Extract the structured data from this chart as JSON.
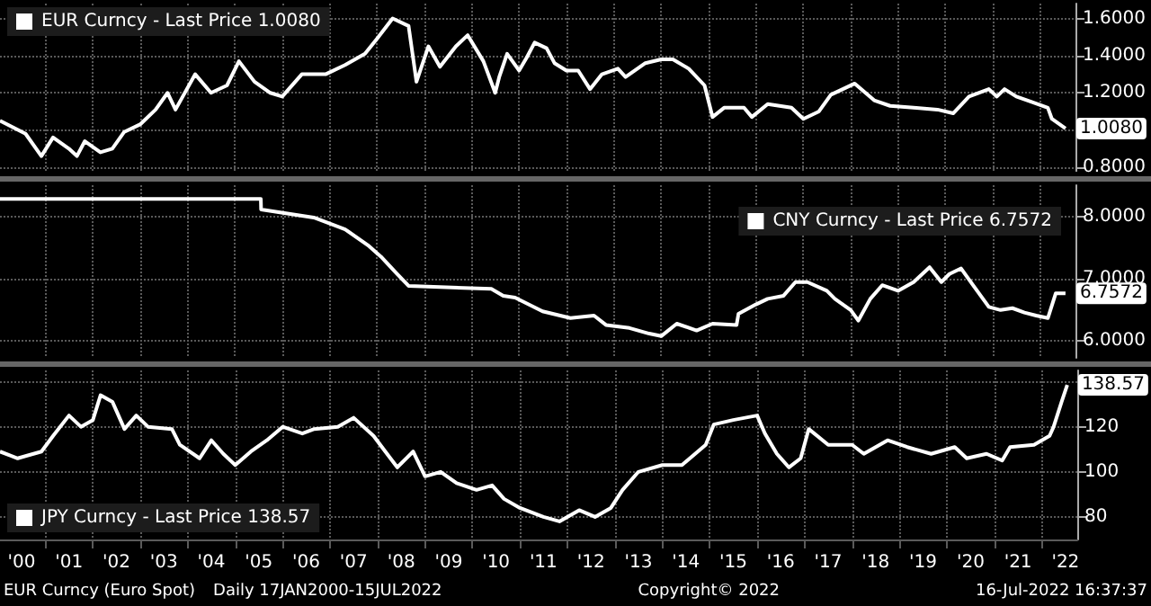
{
  "chart_data": [
    {
      "type": "line",
      "xlim": [
        "2000-01-17",
        "2022-09-30"
      ],
      "ylim": [
        0.78,
        1.68
      ],
      "tick_labels": "y",
      "grid": true,
      "legend": "top left",
      "xticks": [
        {
          "value": "2001-01-01",
          "label": null
        },
        {
          "value": "2002-01-01",
          "label": null
        },
        {
          "value": "2003-01-01",
          "label": null
        },
        {
          "value": "2004-01-01",
          "label": null
        },
        {
          "value": "2005-01-01",
          "label": null
        },
        {
          "value": "2006-01-01",
          "label": null
        },
        {
          "value": "2007-01-01",
          "label": null
        },
        {
          "value": "2008-01-01",
          "label": null
        },
        {
          "value": "2009-01-01",
          "label": null
        },
        {
          "value": "2010-01-01",
          "label": null
        },
        {
          "value": "2011-01-01",
          "label": null
        },
        {
          "value": "2012-01-01",
          "label": null
        },
        {
          "value": "2013-01-01",
          "label": null
        },
        {
          "value": "2014-01-01",
          "label": null
        },
        {
          "value": "2015-01-01",
          "label": null
        },
        {
          "value": "2016-01-01",
          "label": null
        },
        {
          "value": "2017-01-01",
          "label": null
        },
        {
          "value": "2018-01-01",
          "label": null
        },
        {
          "value": "2019-01-01",
          "label": null
        },
        {
          "value": "2020-01-01",
          "label": null
        },
        {
          "value": "2021-01-01",
          "label": null
        },
        {
          "value": "2022-01-01",
          "label": null
        }
      ],
      "yticks": [
        {
          "value": 0.8,
          "label": "0.8000"
        },
        {
          "value": 1.0,
          "label": null
        },
        {
          "value": 1.2,
          "label": "1.2000"
        },
        {
          "value": 1.4,
          "label": "1.4000"
        },
        {
          "value": 1.6,
          "label": "1.6000"
        }
      ],
      "annotations": [
        {
          "text": "1.0080",
          "x": "2022-07-15",
          "y": 1.008
        }
      ],
      "series": [
        {
          "name": "EUR Curncy - Last Price 1.0080",
          "color": "#ffffff",
          "x": [
            "2000-01-17",
            "2000-08",
            "2000-12",
            "2001-03",
            "2001-07",
            "2001-09",
            "2001-11",
            "2002-03",
            "2002-06",
            "2002-09",
            "2003-01",
            "2003-05",
            "2003-08",
            "2003-10",
            "2004-03",
            "2004-07",
            "2004-11",
            "2005-02",
            "2005-06",
            "2005-10",
            "2006-01",
            "2006-06",
            "2006-12",
            "2007-05",
            "2007-10",
            "2008-01",
            "2008-05",
            "2008-09",
            "2008-11",
            "2009-02",
            "2009-05",
            "2009-09",
            "2009-12",
            "2010-04",
            "2010-07",
            "2010-08",
            "2010-10",
            "2011-01",
            "2011-03",
            "2011-05",
            "2011-08",
            "2011-10",
            "2012-01",
            "2012-04",
            "2012-07",
            "2012-10",
            "2013-02",
            "2013-04",
            "2013-09",
            "2014-01",
            "2014-04",
            "2014-08",
            "2014-12",
            "2015-02",
            "2015-05",
            "2015-10",
            "2015-12",
            "2016-04",
            "2016-10",
            "2017-01",
            "2017-05",
            "2017-08",
            "2018-02",
            "2018-07",
            "2018-11",
            "2019-05",
            "2019-11",
            "2020-03",
            "2020-07",
            "2020-12",
            "2021-02",
            "2021-04",
            "2021-07",
            "2021-11",
            "2022-03",
            "2022-04",
            "2022-07-15"
          ],
          "values": [
            1.05,
            0.98,
            0.86,
            0.96,
            0.9,
            0.86,
            0.94,
            0.88,
            0.9,
            0.99,
            1.03,
            1.11,
            1.2,
            1.11,
            1.3,
            1.2,
            1.24,
            1.37,
            1.26,
            1.2,
            1.18,
            1.3,
            1.3,
            1.35,
            1.41,
            1.49,
            1.6,
            1.56,
            1.26,
            1.45,
            1.34,
            1.45,
            1.51,
            1.37,
            1.2,
            1.285,
            1.41,
            1.32,
            1.39,
            1.47,
            1.44,
            1.36,
            1.32,
            1.32,
            1.22,
            1.3,
            1.33,
            1.285,
            1.36,
            1.38,
            1.38,
            1.33,
            1.24,
            1.07,
            1.12,
            1.12,
            1.07,
            1.14,
            1.12,
            1.06,
            1.1,
            1.19,
            1.25,
            1.16,
            1.13,
            1.12,
            1.11,
            1.09,
            1.18,
            1.22,
            1.18,
            1.22,
            1.18,
            1.15,
            1.12,
            1.06,
            1.008
          ]
        }
      ]
    },
    {
      "type": "line",
      "xlim": [
        "2000-01-17",
        "2022-09-30"
      ],
      "ylim": [
        5.72,
        8.5
      ],
      "tick_labels": "y",
      "grid": true,
      "legend": "top right",
      "xticks": [
        {
          "value": "2001-01-01",
          "label": null
        },
        {
          "value": "2002-01-01",
          "label": null
        },
        {
          "value": "2003-01-01",
          "label": null
        },
        {
          "value": "2004-01-01",
          "label": null
        },
        {
          "value": "2005-01-01",
          "label": null
        },
        {
          "value": "2006-01-01",
          "label": null
        },
        {
          "value": "2007-01-01",
          "label": null
        },
        {
          "value": "2008-01-01",
          "label": null
        },
        {
          "value": "2009-01-01",
          "label": null
        },
        {
          "value": "2010-01-01",
          "label": null
        },
        {
          "value": "2011-01-01",
          "label": null
        },
        {
          "value": "2012-01-01",
          "label": null
        },
        {
          "value": "2013-01-01",
          "label": null
        },
        {
          "value": "2014-01-01",
          "label": null
        },
        {
          "value": "2015-01-01",
          "label": null
        },
        {
          "value": "2016-01-01",
          "label": null
        },
        {
          "value": "2017-01-01",
          "label": null
        },
        {
          "value": "2018-01-01",
          "label": null
        },
        {
          "value": "2019-01-01",
          "label": null
        },
        {
          "value": "2020-01-01",
          "label": null
        },
        {
          "value": "2021-01-01",
          "label": null
        },
        {
          "value": "2022-01-01",
          "label": null
        }
      ],
      "yticks": [
        {
          "value": 6,
          "label": "6.0000"
        },
        {
          "value": 7,
          "label": "7.0000"
        },
        {
          "value": 8,
          "label": "8.0000"
        }
      ],
      "annotations": [
        {
          "text": "6.7572",
          "x": "2022-07-15",
          "y": 6.7572
        }
      ],
      "series": [
        {
          "name": "CNY Curncy - Last Price 6.7572",
          "color": "#ffffff",
          "x": [
            "2000-01-17",
            "2005-07-20",
            "2005-07-22",
            "2006-09",
            "2007-05",
            "2007-11",
            "2008-02",
            "2008-06",
            "2008-09",
            "2010-06",
            "2010-09",
            "2010-12",
            "2011-07",
            "2012-02",
            "2012-08",
            "2012-11",
            "2013-05",
            "2013-10",
            "2014-01",
            "2014-05",
            "2014-10",
            "2015-02",
            "2015-08-05",
            "2015-08-20",
            "2016-01",
            "2016-04",
            "2016-08",
            "2016-11",
            "2017-02",
            "2017-07",
            "2017-09",
            "2018-01",
            "2018-03",
            "2018-06",
            "2018-09",
            "2019-01",
            "2019-05",
            "2019-09",
            "2019-12",
            "2020-02",
            "2020-05",
            "2020-08",
            "2020-12",
            "2021-03",
            "2021-06",
            "2021-09",
            "2021-12",
            "2022-03",
            "2022-05",
            "2022-07-15"
          ],
          "values": [
            8.28,
            8.28,
            8.11,
            7.98,
            7.79,
            7.52,
            7.35,
            7.08,
            6.88,
            6.83,
            6.72,
            6.69,
            6.47,
            6.36,
            6.4,
            6.25,
            6.2,
            6.11,
            6.07,
            6.27,
            6.16,
            6.27,
            6.25,
            6.43,
            6.58,
            6.67,
            6.72,
            6.94,
            6.94,
            6.8,
            6.67,
            6.49,
            6.32,
            6.67,
            6.89,
            6.8,
            6.94,
            7.18,
            6.94,
            7.07,
            7.16,
            6.89,
            6.54,
            6.49,
            6.52,
            6.45,
            6.4,
            6.36,
            6.76,
            6.7572
          ]
        }
      ]
    },
    {
      "type": "line",
      "xlim": [
        "2000-01-17",
        "2022-09-30"
      ],
      "ylim": [
        70,
        145
      ],
      "grid": true,
      "legend": "bottom left",
      "xticks": [
        {
          "value": "2000-07-01",
          "label": "'00"
        },
        {
          "value": "2001-01-01",
          "label": null
        },
        {
          "value": "2001-07-01",
          "label": "'01"
        },
        {
          "value": "2002-01-01",
          "label": null
        },
        {
          "value": "2002-07-01",
          "label": "'02"
        },
        {
          "value": "2003-01-01",
          "label": null
        },
        {
          "value": "2003-07-01",
          "label": "'03"
        },
        {
          "value": "2004-01-01",
          "label": null
        },
        {
          "value": "2004-07-01",
          "label": "'04"
        },
        {
          "value": "2005-01-01",
          "label": null
        },
        {
          "value": "2005-07-01",
          "label": "'05"
        },
        {
          "value": "2006-01-01",
          "label": null
        },
        {
          "value": "2006-07-01",
          "label": "'06"
        },
        {
          "value": "2007-01-01",
          "label": null
        },
        {
          "value": "2007-07-01",
          "label": "'07"
        },
        {
          "value": "2008-01-01",
          "label": null
        },
        {
          "value": "2008-07-01",
          "label": "'08"
        },
        {
          "value": "2009-01-01",
          "label": null
        },
        {
          "value": "2009-07-01",
          "label": "'09"
        },
        {
          "value": "2010-01-01",
          "label": null
        },
        {
          "value": "2010-07-01",
          "label": "'10"
        },
        {
          "value": "2011-01-01",
          "label": null
        },
        {
          "value": "2011-07-01",
          "label": "'11"
        },
        {
          "value": "2012-01-01",
          "label": null
        },
        {
          "value": "2012-07-01",
          "label": "'12"
        },
        {
          "value": "2013-01-01",
          "label": null
        },
        {
          "value": "2013-07-01",
          "label": "'13"
        },
        {
          "value": "2014-01-01",
          "label": null
        },
        {
          "value": "2014-07-01",
          "label": "'14"
        },
        {
          "value": "2015-01-01",
          "label": null
        },
        {
          "value": "2015-07-01",
          "label": "'15"
        },
        {
          "value": "2016-01-01",
          "label": null
        },
        {
          "value": "2016-07-01",
          "label": "'16"
        },
        {
          "value": "2017-01-01",
          "label": null
        },
        {
          "value": "2017-07-01",
          "label": "'17"
        },
        {
          "value": "2018-01-01",
          "label": null
        },
        {
          "value": "2018-07-01",
          "label": "'18"
        },
        {
          "value": "2019-01-01",
          "label": null
        },
        {
          "value": "2019-07-01",
          "label": "'19"
        },
        {
          "value": "2020-01-01",
          "label": null
        },
        {
          "value": "2020-07-01",
          "label": "'20"
        },
        {
          "value": "2021-01-01",
          "label": null
        },
        {
          "value": "2021-07-01",
          "label": "'21"
        },
        {
          "value": "2022-01-01",
          "label": null
        },
        {
          "value": "2022-07-01",
          "label": "'22"
        }
      ],
      "yticks": [
        80,
        100,
        120,
        {
          "value": 140,
          "label": null
        }
      ],
      "annotations": [
        {
          "text": "138.57",
          "x": "2022-07-15",
          "y": 138.57
        },
        "EUR Curncy (Euro Spot)",
        "Daily 17JAN2000-15JUL2022",
        "Copyright© 2022",
        "16-Jul-2022 16:37:37"
      ],
      "series": [
        {
          "name": "JPY Curncy - Last Price 138.57",
          "color": "#ffffff",
          "x": [
            "2000-01-17",
            "2000-06",
            "2000-12",
            "2001-03",
            "2001-07",
            "2001-10",
            "2002-01",
            "2002-03",
            "2002-06",
            "2002-09",
            "2002-12",
            "2003-03",
            "2003-09",
            "2003-11",
            "2004-04",
            "2004-07",
            "2004-10",
            "2005-01",
            "2005-05",
            "2005-09",
            "2006-01",
            "2006-06",
            "2006-09",
            "2007-03",
            "2007-07",
            "2007-12",
            "2008-03",
            "2008-06",
            "2008-10",
            "2009-01",
            "2009-05",
            "2009-09",
            "2010-02",
            "2010-06",
            "2010-09",
            "2011-01",
            "2011-07",
            "2011-11",
            "2012-04",
            "2012-08",
            "2012-12",
            "2013-03",
            "2013-07",
            "2014-01",
            "2014-06",
            "2014-12",
            "2015-02",
            "2015-07",
            "2016-01",
            "2016-03",
            "2016-06",
            "2016-09",
            "2016-12",
            "2017-02",
            "2017-07",
            "2018-01",
            "2018-04",
            "2018-10",
            "2019-03",
            "2019-09",
            "2020-03",
            "2020-06",
            "2020-11",
            "2021-03",
            "2021-05",
            "2021-11",
            "2022-03",
            "2022-04",
            "2022-06",
            "2022-07-15"
          ],
          "values": [
            109,
            106,
            109,
            116,
            125,
            120,
            123,
            134,
            131,
            119,
            125,
            120,
            119,
            112,
            106,
            114,
            108,
            103,
            109,
            114,
            120,
            117,
            119,
            120,
            124,
            116,
            109,
            102,
            109,
            98,
            100,
            95,
            92,
            94,
            88,
            84,
            80,
            78,
            83,
            80,
            84,
            92,
            100,
            103,
            103,
            112,
            121,
            123,
            125,
            117,
            108,
            102,
            106,
            119,
            112,
            112,
            108,
            114,
            111,
            108,
            111,
            106,
            108,
            105,
            111,
            112,
            116,
            120,
            131,
            138.57
          ]
        }
      ]
    }
  ]
}
